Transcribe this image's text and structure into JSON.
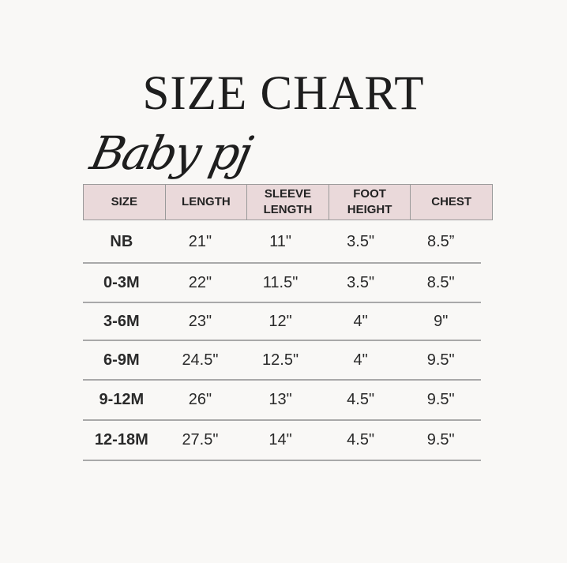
{
  "title": "SIZE CHART",
  "subtitle": "Baby pj",
  "table": {
    "headers": [
      "SIZE",
      "LENGTH",
      "SLEEVE\nLENGTH",
      "FOOT\nHEIGHT",
      "CHEST"
    ],
    "rows": [
      [
        "NB",
        "21\"",
        "11\"",
        "3.5\"",
        "8.5”"
      ],
      [
        "0-3M",
        "22\"",
        "11.5\"",
        "3.5\"",
        "8.5\""
      ],
      [
        "3-6M",
        "23\"",
        "12\"",
        "4\"",
        "9\""
      ],
      [
        "6-9M",
        "24.5\"",
        "12.5\"",
        "4\"",
        "9.5\""
      ],
      [
        "9-12M",
        "26\"",
        "13\"",
        "4.5\"",
        "9.5\""
      ],
      [
        "12-18M",
        "27.5\"",
        "14\"",
        "4.5\"",
        "9.5\""
      ]
    ]
  },
  "colors": {
    "header_bg": "#ead9da",
    "background": "#f9f8f6"
  }
}
